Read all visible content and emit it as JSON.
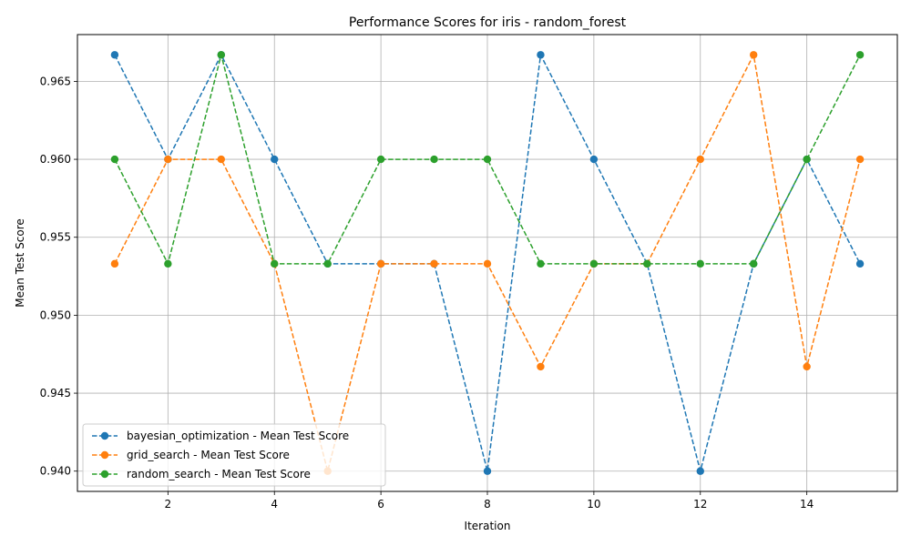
{
  "chart_data": {
    "type": "line",
    "title": "Performance Scores for iris - random_forest",
    "xlabel": "Iteration",
    "ylabel": "Mean Test Score",
    "x": [
      1,
      2,
      3,
      4,
      5,
      6,
      7,
      8,
      9,
      10,
      11,
      12,
      13,
      14,
      15
    ],
    "xlim": [
      0.3,
      15.7
    ],
    "ylim": [
      0.9387,
      0.968
    ],
    "xticks": [
      2,
      4,
      6,
      8,
      10,
      12,
      14
    ],
    "yticks": [
      0.94,
      0.945,
      0.95,
      0.955,
      0.96,
      0.965
    ],
    "ytick_labels": [
      "0.940",
      "0.945",
      "0.950",
      "0.955",
      "0.960",
      "0.965"
    ],
    "grid": true,
    "legend_position": "lower-left",
    "series": [
      {
        "name": "bayesian_optimization - Mean Test Score",
        "color": "#1f77b4",
        "values": [
          0.9667,
          0.96,
          0.9667,
          0.96,
          0.9533,
          0.9533,
          0.9533,
          0.94,
          0.9667,
          0.96,
          0.9533,
          0.94,
          0.9533,
          0.96,
          0.9533
        ]
      },
      {
        "name": "grid_search - Mean Test Score",
        "color": "#ff7f0e",
        "values": [
          0.9533,
          0.96,
          0.96,
          0.9533,
          0.94,
          0.9533,
          0.9533,
          0.9533,
          0.9467,
          0.9533,
          0.9533,
          0.96,
          0.9667,
          0.9467,
          0.96
        ]
      },
      {
        "name": "random_search - Mean Test Score",
        "color": "#2ca02c",
        "values": [
          0.96,
          0.9533,
          0.9667,
          0.9533,
          0.9533,
          0.96,
          0.96,
          0.96,
          0.9533,
          0.9533,
          0.9533,
          0.9533,
          0.9533,
          0.96,
          0.9667
        ]
      }
    ]
  }
}
